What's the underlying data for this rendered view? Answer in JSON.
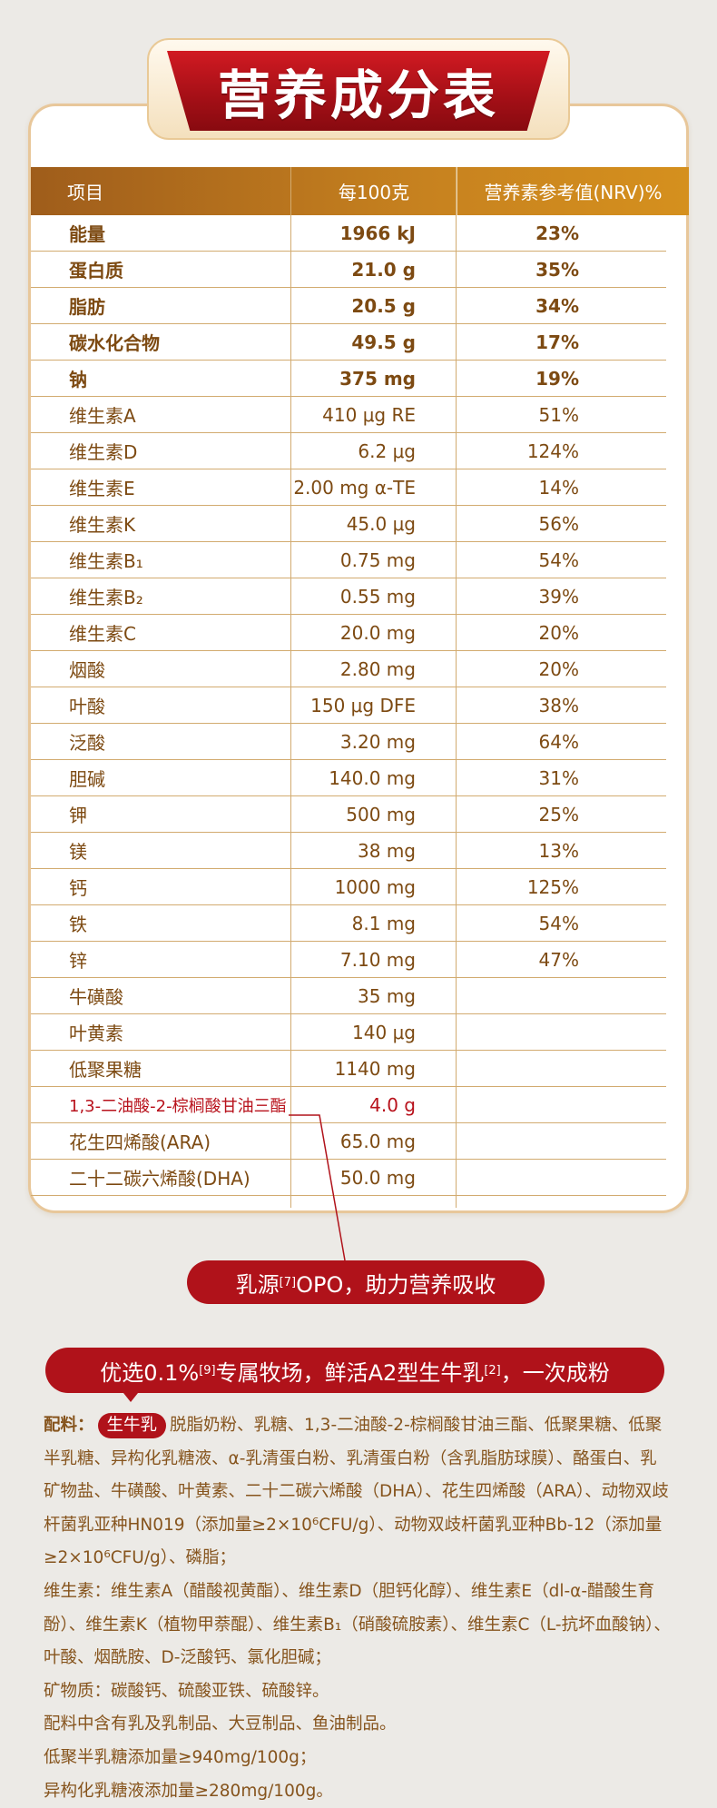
{
  "title": "营养成分表",
  "table": {
    "headers": [
      "项目",
      "每100克",
      "营养素参考值(NRV)%"
    ],
    "rows": [
      {
        "name": "能量",
        "amount": "1966 kJ",
        "nrv": "23%",
        "bold": true
      },
      {
        "name": "蛋白质",
        "amount": "21.0 g",
        "nrv": "35%",
        "bold": true
      },
      {
        "name": "脂肪",
        "amount": "20.5 g",
        "nrv": "34%",
        "bold": true
      },
      {
        "name": "碳水化合物",
        "amount": "49.5 g",
        "nrv": "17%",
        "bold": true
      },
      {
        "name": "钠",
        "amount": "375 mg",
        "nrv": "19%",
        "bold": true
      },
      {
        "name": "维生素A",
        "amount": "410 μg RE",
        "nrv": "51%"
      },
      {
        "name": "维生素D",
        "amount": "6.2 μg",
        "nrv": "124%"
      },
      {
        "name": "维生素E",
        "amount": "2.00 mg α-TE",
        "nrv": "14%"
      },
      {
        "name": "维生素K",
        "amount": "45.0 μg",
        "nrv": "56%"
      },
      {
        "name": "维生素B₁",
        "amount": "0.75 mg",
        "nrv": "54%"
      },
      {
        "name": "维生素B₂",
        "amount": "0.55 mg",
        "nrv": "39%"
      },
      {
        "name": "维生素C",
        "amount": "20.0 mg",
        "nrv": "20%"
      },
      {
        "name": "烟酸",
        "amount": "2.80 mg",
        "nrv": "20%"
      },
      {
        "name": "叶酸",
        "amount": "150 μg DFE",
        "nrv": "38%"
      },
      {
        "name": "泛酸",
        "amount": "3.20 mg",
        "nrv": "64%"
      },
      {
        "name": "胆碱",
        "amount": "140.0 mg",
        "nrv": "31%"
      },
      {
        "name": "钾",
        "amount": "500 mg",
        "nrv": "25%"
      },
      {
        "name": "镁",
        "amount": "38 mg",
        "nrv": "13%"
      },
      {
        "name": "钙",
        "amount": "1000 mg",
        "nrv": "125%"
      },
      {
        "name": "铁",
        "amount": "8.1 mg",
        "nrv": "54%"
      },
      {
        "name": "锌",
        "amount": "7.10 mg",
        "nrv": "47%"
      },
      {
        "name": "牛磺酸",
        "amount": "35 mg",
        "nrv": ""
      },
      {
        "name": "叶黄素",
        "amount": "140 μg",
        "nrv": ""
      },
      {
        "name": "低聚果糖",
        "amount": "1140 mg",
        "nrv": ""
      },
      {
        "name": "1,3-二油酸-2-棕榈酸甘油三酯",
        "amount": "4.0 g",
        "nrv": "",
        "highlight": true
      },
      {
        "name": "花生四烯酸(ARA)",
        "amount": "65.0 mg",
        "nrv": ""
      },
      {
        "name": "二十二碳六烯酸(DHA)",
        "amount": "50.0 mg",
        "nrv": ""
      }
    ]
  },
  "opo_callout": {
    "prefix": "乳源",
    "ref": "[7]",
    "suffix": "OPO，助力营养吸收"
  },
  "ingredients_banner": {
    "part1": "优选0.1%",
    "ref1": "[9]",
    "part2": "专属牧场，鲜活A2型生牛乳",
    "ref2": "[2]",
    "part3": "，一次成粉"
  },
  "ingredients": {
    "label": "配料：",
    "pill": "生牛乳",
    "main": "脱脂奶粉、乳糖、1,3-二油酸-2-棕榈酸甘油三酯、低聚果糖、低聚半乳糖、异构化乳糖液、α-乳清蛋白粉、乳清蛋白粉（含乳脂肪球膜）、酪蛋白、乳矿物盐、牛磺酸、叶黄素、二十二碳六烯酸（DHA）、花生四烯酸（ARA）、动物双歧杆菌乳亚种HN019（添加量≥2×10⁶CFU/g）、动物双歧杆菌乳亚种Bb-12（添加量≥2×10⁶CFU/g）、磷脂；",
    "vitamins": "维生素：维生素A（醋酸视黄酯）、维生素D（胆钙化醇）、维生素E（dl-α-醋酸生育酚）、维生素K（植物甲萘醌）、维生素B₁（硝酸硫胺素）、维生素C（L-抗坏血酸钠）、叶酸、烟酰胺、D-泛酸钙、氯化胆碱；",
    "minerals": "矿物质：碳酸钙、硫酸亚铁、硫酸锌。",
    "allergens": "配料中含有乳及乳制品、大豆制品、鱼油制品。",
    "gos": "低聚半乳糖添加量≥940mg/100g；",
    "isomer": "异构化乳糖液添加量≥280mg/100g。"
  },
  "colors": {
    "accent_red": "#b0121a",
    "brown_text": "#7d4a12",
    "gold_header": "#c7821f",
    "divider": "#d2ab70"
  }
}
